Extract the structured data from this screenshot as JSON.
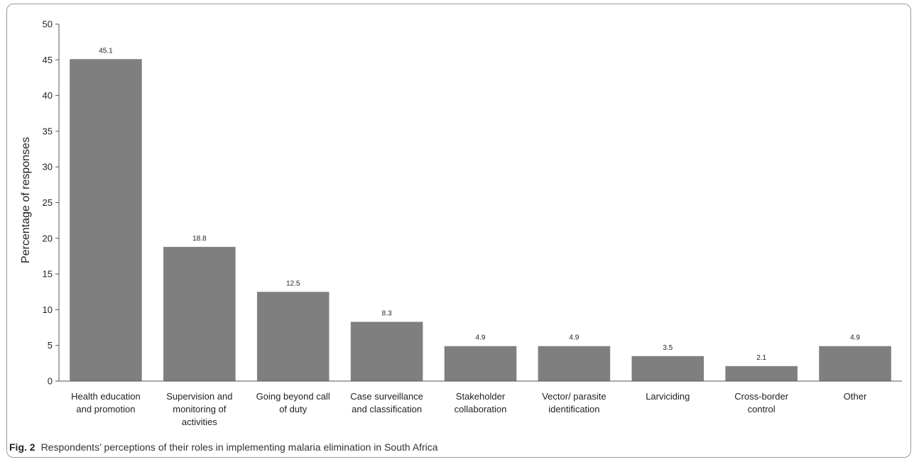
{
  "figure": {
    "number": "Fig. 2",
    "caption": "Respondents’ perceptions of their roles in implementing malaria elimination in South Africa"
  },
  "colors": {
    "bar": "#7f7f7f",
    "axis": "#555555",
    "text": "#222222"
  },
  "chart_data": {
    "type": "bar",
    "title": "",
    "xlabel": "",
    "ylabel": "Percentage of responses",
    "ylim": [
      0,
      50
    ],
    "yticks": [
      0,
      5,
      10,
      15,
      20,
      25,
      30,
      35,
      40,
      45,
      50
    ],
    "grid": false,
    "legend": "none",
    "categories": [
      [
        "Health education",
        "and promotion"
      ],
      [
        "Supervision and",
        "monitoring of",
        "activities"
      ],
      [
        "Going beyond call",
        "of duty"
      ],
      [
        "Case surveillance",
        "and classification"
      ],
      [
        "Stakeholder",
        "collaboration"
      ],
      [
        "Vector/ parasite",
        "identification"
      ],
      [
        "Larviciding"
      ],
      [
        "Cross-border",
        "control"
      ],
      [
        "Other"
      ]
    ],
    "values": [
      45.1,
      18.8,
      12.5,
      8.3,
      4.9,
      4.9,
      3.5,
      2.1,
      4.9
    ],
    "data_labels": [
      "45.1",
      "18.8",
      "12.5",
      "8.3",
      "4.9",
      "4.9",
      "3.5",
      "2.1",
      "4.9"
    ]
  }
}
